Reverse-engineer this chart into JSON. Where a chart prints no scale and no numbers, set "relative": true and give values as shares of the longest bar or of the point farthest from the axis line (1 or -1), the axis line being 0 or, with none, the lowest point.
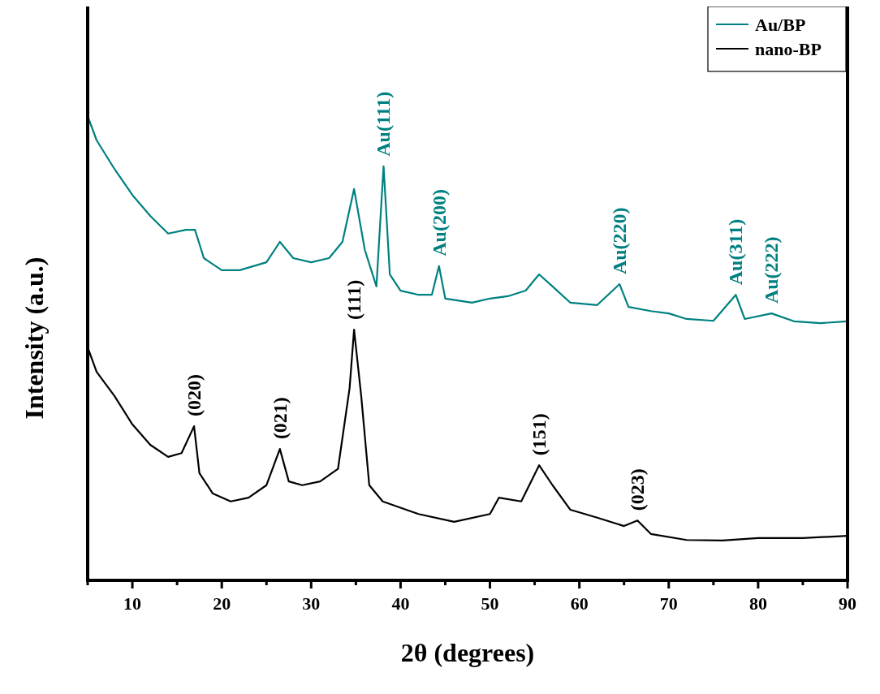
{
  "chart_data": {
    "type": "line",
    "relative": true,
    "xlabel": "2θ (degrees)",
    "ylabel": "Intensity (a.u.)",
    "legend": "top right",
    "xlim": [
      5,
      90
    ],
    "xticks": [
      {
        "value": 5,
        "label": null
      },
      10,
      {
        "value": 15,
        "label": null
      },
      20,
      {
        "value": 25,
        "label": null
      },
      30,
      {
        "value": 35,
        "label": null
      },
      40,
      {
        "value": 45,
        "label": null
      },
      50,
      {
        "value": 55,
        "label": null
      },
      60,
      {
        "value": 65,
        "label": null
      },
      70,
      {
        "value": 75,
        "label": null
      },
      80,
      {
        "value": 85,
        "label": null
      },
      90
    ],
    "series": [
      {
        "name": "Au/BP",
        "color": "#008080",
        "x": [
          5,
          6,
          8,
          10,
          12,
          14,
          16,
          17,
          18,
          20,
          22,
          25,
          26.5,
          28,
          30,
          32,
          33.5,
          34.8,
          36,
          37.3,
          38.1,
          38.8,
          40,
          42,
          43.5,
          44.3,
          45,
          48,
          50,
          52,
          54,
          55.5,
          57,
          59,
          62,
          64.5,
          65.5,
          68,
          70,
          72,
          75,
          77.5,
          78.5,
          81.5,
          84,
          87,
          90
        ],
        "values": [
          1.0,
          0.948,
          0.886,
          0.83,
          0.785,
          0.747,
          0.755,
          0.755,
          0.694,
          0.668,
          0.668,
          0.685,
          0.729,
          0.694,
          0.685,
          0.694,
          0.729,
          0.843,
          0.712,
          0.633,
          0.892,
          0.659,
          0.624,
          0.615,
          0.615,
          0.677,
          0.607,
          0.598,
          0.607,
          0.612,
          0.624,
          0.659,
          0.633,
          0.598,
          0.593,
          0.638,
          0.589,
          0.58,
          0.575,
          0.563,
          0.559,
          0.615,
          0.563,
          0.575,
          0.558,
          0.554,
          0.558
        ]
      },
      {
        "name": "nano-BP",
        "color": "#000000",
        "x": [
          5,
          6,
          8,
          10,
          12,
          14,
          15.5,
          16.9,
          17.5,
          19,
          21,
          23,
          25,
          26.5,
          27.5,
          29,
          31,
          33,
          34.3,
          34.8,
          35.6,
          36.5,
          38,
          42,
          46,
          50,
          51,
          53.5,
          55.5,
          57,
          59,
          62,
          65,
          66.5,
          68,
          72,
          76,
          80,
          85,
          90
        ],
        "values": [
          0.502,
          0.449,
          0.397,
          0.336,
          0.292,
          0.266,
          0.274,
          0.332,
          0.231,
          0.187,
          0.17,
          0.178,
          0.205,
          0.283,
          0.213,
          0.205,
          0.213,
          0.24,
          0.414,
          0.54,
          0.397,
          0.205,
          0.17,
          0.143,
          0.126,
          0.143,
          0.178,
          0.17,
          0.248,
          0.205,
          0.152,
          0.135,
          0.117,
          0.129,
          0.1,
          0.087,
          0.086,
          0.091,
          0.091,
          0.096
        ]
      }
    ],
    "annotations": [
      {
        "text": "Au(111)",
        "x": 38.1,
        "y": 0.892
      },
      {
        "text": "Au(200)",
        "x": 44.3,
        "y": 0.677
      },
      {
        "text": "Au(220)",
        "x": 64.5,
        "y": 0.638
      },
      {
        "text": "Au(311)",
        "x": 77.5,
        "y": 0.615
      },
      {
        "text": "Au(222)",
        "x": 81.5,
        "y": 0.575
      },
      {
        "text": "(020)",
        "x": 16.9,
        "y": 0.332
      },
      {
        "text": "(021)",
        "x": 26.5,
        "y": 0.283
      },
      {
        "text": "(111)",
        "x": 34.8,
        "y": 0.54
      },
      {
        "text": "(151)",
        "x": 55.5,
        "y": 0.248
      },
      {
        "text": "(023)",
        "x": 66.5,
        "y": 0.129
      }
    ]
  }
}
